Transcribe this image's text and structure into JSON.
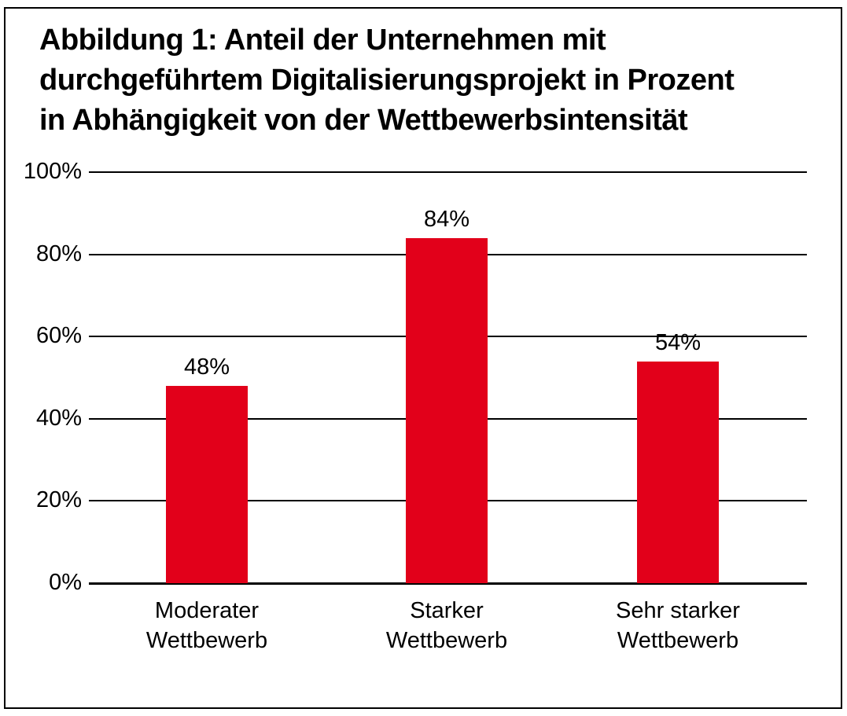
{
  "figure": {
    "title": "Abbildung 1: Anteil der Unternehmen mit\ndurchgeführtem Digitalisierungsprojekt in Prozent\nin Abhängigkeit von der Wettbewerbsintensität"
  },
  "chart_data": {
    "type": "bar",
    "title": "Abbildung 1: Anteil der Unternehmen mit durchgeführtem Digitalisierungsprojekt in Prozent in Abhängigkeit von der Wettbewerbsintensität",
    "categories": [
      "Moderater\nWettbewerb",
      "Starker\nWettbewerb",
      "Sehr starker\nWettbewerb"
    ],
    "values": [
      48,
      84,
      54
    ],
    "value_labels": [
      "48%",
      "84%",
      "54%"
    ],
    "ytick_labels": [
      "100%",
      "80%",
      "60%",
      "40%",
      "20%",
      "0%"
    ],
    "ylim": [
      0,
      100
    ],
    "grid": true,
    "legend": false,
    "xlabel": "",
    "ylabel": "",
    "bar_color": "#e2001a",
    "text_color": "#000000",
    "gridline_color": "#000000"
  }
}
